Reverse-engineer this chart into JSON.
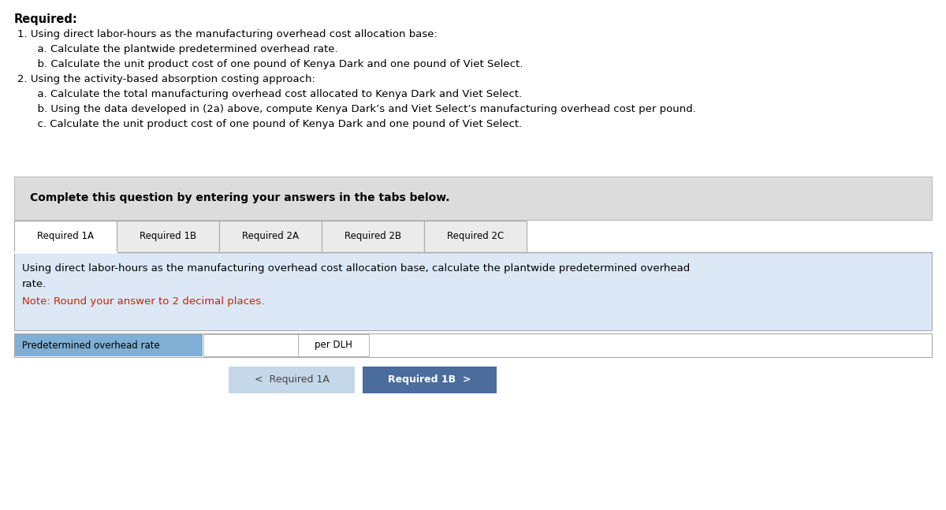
{
  "bg_color": "#ffffff",
  "required_title": "Required:",
  "instruction_lines": [
    "1. Using direct labor-hours as the manufacturing overhead cost allocation base:",
    "      a. Calculate the plantwide predetermined overhead rate.",
    "      b. Calculate the unit product cost of one pound of Kenya Dark and one pound of Viet Select.",
    "2. Using the activity-based absorption costing approach:",
    "      a. Calculate the total manufacturing overhead cost allocated to Kenya Dark and Viet Select.",
    "      b. Using the data developed in (2a) above, compute Kenya Dark’s and Viet Select’s manufacturing overhead cost per pound.",
    "      c. Calculate the unit product cost of one pound of Kenya Dark and one pound of Viet Select."
  ],
  "complete_box_color": "#dcdcdc",
  "complete_box_text": "Complete this question by entering your answers in the tabs below.",
  "tabs": [
    "Required 1A",
    "Required 1B",
    "Required 2A",
    "Required 2B",
    "Required 2C"
  ],
  "active_tab": "Required 1A",
  "content_bg": "#dce8f5",
  "content_text_line1": "Using direct labor-hours as the manufacturing overhead cost allocation base, calculate the plantwide predetermined overhead",
  "content_text_line2": "rate.",
  "note_text": "Note: Round your answer to 2 decimal places.",
  "note_color": "#cc2200",
  "label_text": "Predetermined overhead rate",
  "label_bg": "#7fafd4",
  "btn_back_text": "<  Required 1A",
  "btn_back_color": "#c5d8ea",
  "btn_back_text_color": "#444444",
  "btn_next_text": "Required 1B  >",
  "btn_next_color": "#4a6d9e",
  "btn_next_text_color": "#ffffff",
  "per_dlh_text": "per DLH",
  "tab_border_color": "#aaaaaa",
  "content_border_color": "#aaaaaa"
}
